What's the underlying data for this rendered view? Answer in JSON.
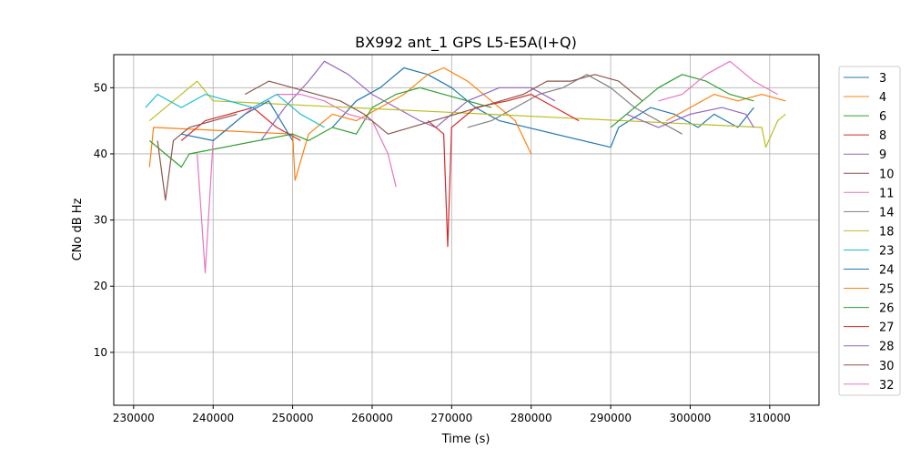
{
  "chart_data": {
    "type": "line",
    "title": "BX992 ant_1 GPS L5-E5A(I+Q)",
    "xlabel": "Time (s)",
    "ylabel": "CNo dB Hz",
    "xlim": [
      227500,
      316200
    ],
    "ylim": [
      2,
      55
    ],
    "xticks": [
      230000,
      240000,
      250000,
      260000,
      270000,
      280000,
      290000,
      300000,
      310000
    ],
    "yticks": [
      10,
      20,
      30,
      40,
      50
    ],
    "grid": true,
    "legend_placement": "outside-right",
    "series": [
      {
        "name": "3",
        "color": "#1f77b4",
        "points": [
          [
            255000,
            44
          ],
          [
            258000,
            48
          ],
          [
            261000,
            50
          ],
          [
            264000,
            53
          ],
          [
            267000,
            52
          ],
          [
            270000,
            50
          ],
          [
            273000,
            47
          ],
          [
            276000,
            45
          ],
          [
            290000,
            41
          ],
          [
            291000,
            44
          ],
          [
            295000,
            47
          ],
          [
            298000,
            46
          ],
          [
            301000,
            44
          ],
          [
            303000,
            46
          ],
          [
            306000,
            44
          ],
          [
            308000,
            47
          ]
        ]
      },
      {
        "name": "4",
        "color": "#ff7f0e",
        "points": [
          [
            232000,
            38
          ],
          [
            232500,
            44
          ],
          [
            250000,
            43
          ],
          [
            250300,
            36
          ],
          [
            252000,
            43
          ],
          [
            255000,
            46
          ],
          [
            258000,
            45
          ],
          [
            261000,
            47
          ],
          [
            264000,
            49
          ],
          [
            267000,
            52
          ],
          [
            269000,
            53
          ],
          [
            272000,
            51
          ],
          [
            275000,
            48
          ],
          [
            278000,
            45
          ],
          [
            280000,
            40
          ]
        ]
      },
      {
        "name": "6",
        "color": "#2ca02c",
        "points": [
          [
            232000,
            42
          ],
          [
            234000,
            40
          ],
          [
            236000,
            38
          ],
          [
            237000,
            40
          ],
          [
            250000,
            43
          ],
          [
            252000,
            42
          ],
          [
            255000,
            44
          ],
          [
            258000,
            43
          ],
          [
            260000,
            47
          ],
          [
            263000,
            49
          ],
          [
            266000,
            50
          ],
          [
            269000,
            49
          ],
          [
            272000,
            48
          ],
          [
            275000,
            47
          ]
        ]
      },
      {
        "name": "8",
        "color": "#d62728",
        "points": [
          [
            236000,
            42
          ],
          [
            239000,
            45
          ],
          [
            242000,
            46
          ],
          [
            245000,
            47
          ],
          [
            248000,
            44
          ],
          [
            251000,
            42
          ]
        ]
      },
      {
        "name": "9",
        "color": "#9467bd",
        "points": [
          [
            246000,
            42
          ],
          [
            249000,
            47
          ],
          [
            252000,
            51
          ],
          [
            254000,
            54
          ],
          [
            257000,
            52
          ],
          [
            260000,
            49
          ],
          [
            263000,
            47
          ],
          [
            266000,
            45
          ],
          [
            268000,
            44
          ],
          [
            272000,
            48
          ],
          [
            276000,
            50
          ],
          [
            280000,
            50
          ],
          [
            283000,
            48
          ]
        ]
      },
      {
        "name": "10",
        "color": "#8c564b",
        "points": [
          [
            233000,
            42
          ],
          [
            234000,
            33
          ],
          [
            235000,
            42
          ],
          [
            237000,
            44
          ],
          [
            240000,
            45
          ],
          [
            243000,
            46
          ]
        ]
      },
      {
        "name": "11",
        "color": "#e377c2",
        "points": [
          [
            238000,
            40
          ],
          [
            239000,
            22
          ],
          [
            240000,
            42
          ],
          [
            242000,
            44
          ],
          [
            245000,
            47
          ],
          [
            248000,
            49
          ],
          [
            251000,
            49
          ],
          [
            254000,
            48
          ],
          [
            257000,
            46
          ],
          [
            260000,
            45
          ],
          [
            262000,
            40
          ],
          [
            263000,
            35
          ]
        ]
      },
      {
        "name": "14",
        "color": "#7f7f7f",
        "points": [
          [
            272000,
            44
          ],
          [
            275000,
            45
          ],
          [
            278000,
            47
          ],
          [
            281000,
            49
          ],
          [
            284000,
            50
          ],
          [
            287000,
            52
          ],
          [
            290000,
            50
          ],
          [
            293000,
            47
          ],
          [
            296000,
            45
          ],
          [
            299000,
            43
          ]
        ]
      },
      {
        "name": "18",
        "color": "#bcbd22",
        "points": [
          [
            232000,
            45
          ],
          [
            234000,
            47
          ],
          [
            236000,
            49
          ],
          [
            238000,
            51
          ],
          [
            240000,
            48
          ],
          [
            309000,
            44
          ],
          [
            309500,
            41
          ],
          [
            311000,
            45
          ],
          [
            312000,
            46
          ]
        ]
      },
      {
        "name": "23",
        "color": "#17becf",
        "points": [
          [
            231500,
            47
          ],
          [
            233000,
            49
          ],
          [
            236000,
            47
          ],
          [
            239000,
            49
          ],
          [
            242000,
            48
          ],
          [
            245000,
            47
          ],
          [
            248000,
            49
          ],
          [
            251000,
            46
          ],
          [
            254000,
            44
          ]
        ]
      },
      {
        "name": "24",
        "color": "#1f77b4",
        "points": [
          [
            236000,
            43
          ],
          [
            240000,
            42
          ],
          [
            244000,
            46
          ],
          [
            247000,
            48
          ],
          [
            250000,
            42
          ]
        ]
      },
      {
        "name": "25",
        "color": "#ff7f0e",
        "points": [
          [
            297000,
            45
          ],
          [
            300000,
            47
          ],
          [
            303000,
            49
          ],
          [
            306000,
            48
          ],
          [
            309000,
            49
          ],
          [
            312000,
            48
          ]
        ]
      },
      {
        "name": "26",
        "color": "#2ca02c",
        "points": [
          [
            290000,
            44
          ],
          [
            293000,
            47
          ],
          [
            296000,
            50
          ],
          [
            299000,
            52
          ],
          [
            302000,
            51
          ],
          [
            305000,
            49
          ],
          [
            308000,
            48
          ]
        ]
      },
      {
        "name": "27",
        "color": "#d62728",
        "points": [
          [
            267000,
            45
          ],
          [
            269000,
            43
          ],
          [
            269500,
            26
          ],
          [
            270000,
            44
          ],
          [
            273000,
            47
          ],
          [
            277000,
            48
          ],
          [
            280000,
            49
          ],
          [
            283000,
            47
          ],
          [
            286000,
            45
          ]
        ]
      },
      {
        "name": "28",
        "color": "#9467bd",
        "points": [
          [
            292000,
            46
          ],
          [
            296000,
            44
          ],
          [
            300000,
            46
          ],
          [
            304000,
            47
          ],
          [
            307000,
            46
          ],
          [
            308000,
            44
          ]
        ]
      },
      {
        "name": "30",
        "color": "#8c564b",
        "points": [
          [
            244000,
            49
          ],
          [
            247000,
            51
          ],
          [
            250000,
            50
          ],
          [
            253000,
            49
          ],
          [
            256000,
            48
          ],
          [
            259000,
            46
          ],
          [
            262000,
            43
          ],
          [
            279000,
            49
          ],
          [
            282000,
            51
          ],
          [
            285000,
            51
          ],
          [
            288000,
            52
          ],
          [
            291000,
            51
          ],
          [
            294000,
            48
          ]
        ]
      },
      {
        "name": "32",
        "color": "#e377c2",
        "points": [
          [
            296000,
            48
          ],
          [
            299000,
            49
          ],
          [
            302000,
            52
          ],
          [
            305000,
            54
          ],
          [
            308000,
            51
          ],
          [
            311000,
            49
          ]
        ]
      }
    ]
  }
}
